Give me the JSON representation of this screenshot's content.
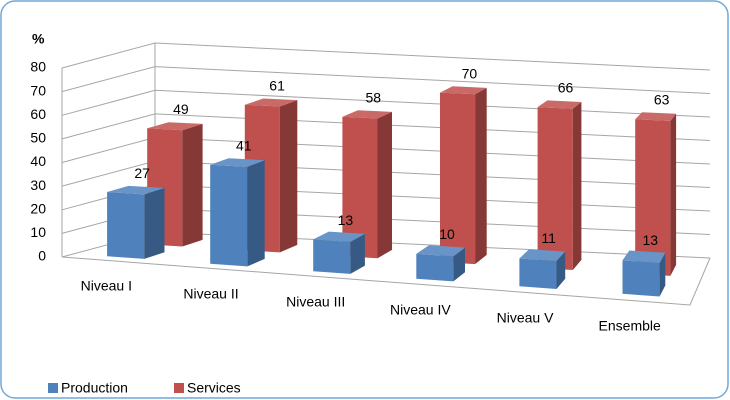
{
  "chart_data": {
    "type": "bar3d",
    "y_label": "%",
    "categories": [
      "Niveau I",
      "Niveau II",
      "Niveau III",
      "Niveau IV",
      "Niveau V",
      "Ensemble"
    ],
    "series": [
      {
        "name": "Production",
        "color": "#4f81bd",
        "values": [
          27,
          41,
          13,
          10,
          11,
          13
        ]
      },
      {
        "name": "Services",
        "color": "#c0504d",
        "values": [
          49,
          61,
          58,
          70,
          66,
          63
        ]
      }
    ],
    "ylim": [
      0,
      80
    ],
    "yticks": [
      0,
      10,
      20,
      30,
      40,
      50,
      60,
      70,
      80
    ],
    "grid": true,
    "legend": "bottom-left"
  }
}
